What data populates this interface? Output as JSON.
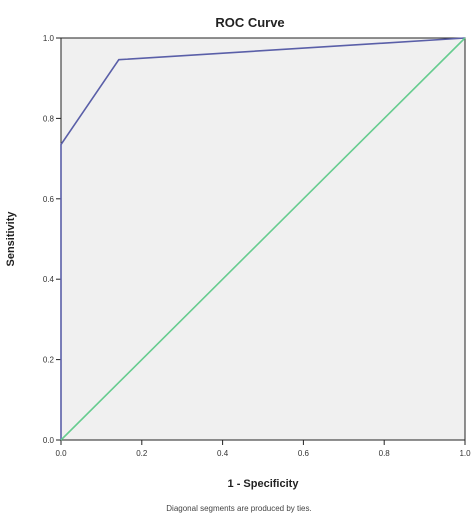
{
  "chart_data": {
    "type": "line",
    "title": "ROC Curve",
    "xlabel": "1 - Specificity",
    "ylabel": "Sensitivity",
    "xlim": [
      0,
      1
    ],
    "ylim": [
      0,
      1
    ],
    "x_ticks": [
      "0.0",
      "0.2",
      "0.4",
      "0.6",
      "0.8",
      "1.0"
    ],
    "y_ticks": [
      "0.0",
      "0.2",
      "0.4",
      "0.6",
      "0.8",
      "1.0"
    ],
    "grid": false,
    "footnote": "Diagonal segments are produced by ties.",
    "series": [
      {
        "color": "#5a5fa8",
        "points": [
          [
            0.0,
            0.0
          ],
          [
            0.0,
            0.735
          ],
          [
            0.143,
            0.946
          ],
          [
            1.0,
            1.0
          ]
        ]
      },
      {
        "color": "#66cc8f",
        "points": [
          [
            0.0,
            0.0
          ],
          [
            1.0,
            1.0
          ]
        ]
      }
    ]
  }
}
